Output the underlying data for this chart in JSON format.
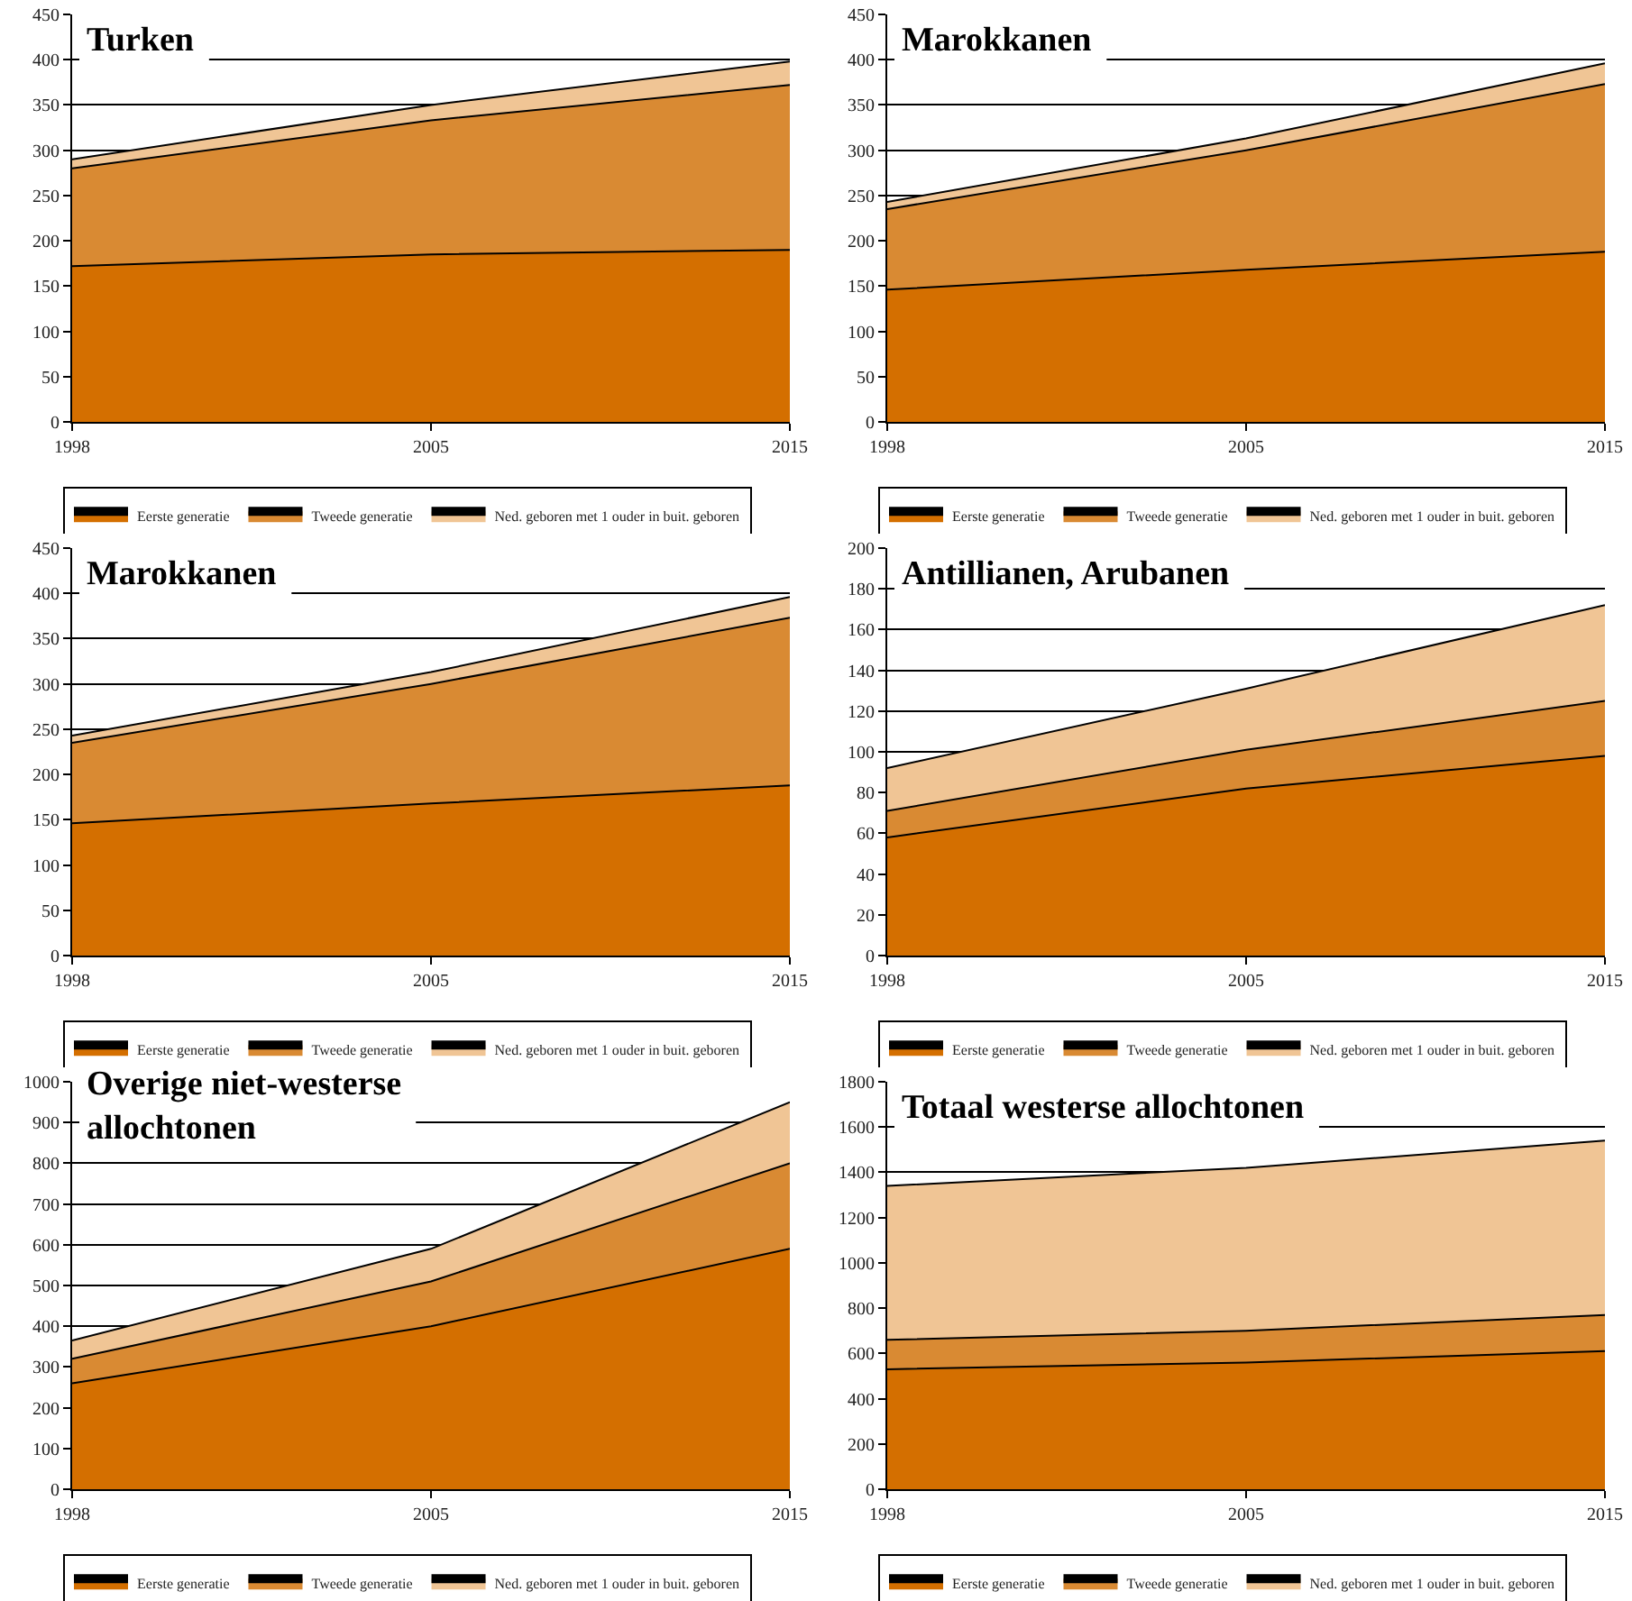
{
  "chart_data": [
    {
      "type": "area",
      "title": "Turken",
      "categories": [
        "1998",
        "2005",
        "2015"
      ],
      "stacked": true,
      "ylim": [
        0,
        450
      ],
      "yticks": [
        0,
        50,
        100,
        150,
        200,
        250,
        300,
        350,
        400,
        450
      ],
      "grid": "y",
      "legend": "bottom",
      "series": [
        {
          "name": "Eerste generatie",
          "color": "#d46f00",
          "values": [
            172,
            185,
            190
          ]
        },
        {
          "name": "Tweede generatie",
          "color": "#d98a33",
          "values": [
            108,
            148,
            182
          ]
        },
        {
          "name": "Ned. geboren met 1 ouder in buit. geboren",
          "color": "#f0c595",
          "values": [
            10,
            17,
            26
          ]
        }
      ]
    },
    {
      "type": "area",
      "title": "Marokkanen",
      "categories": [
        "1998",
        "2005",
        "2015"
      ],
      "stacked": true,
      "ylim": [
        0,
        450
      ],
      "yticks": [
        0,
        50,
        100,
        150,
        200,
        250,
        300,
        350,
        400,
        450
      ],
      "grid": "y",
      "legend": "bottom",
      "series": [
        {
          "name": "Eerste generatie",
          "color": "#d46f00",
          "values": [
            146,
            168,
            188
          ]
        },
        {
          "name": "Tweede generatie",
          "color": "#d98a33",
          "values": [
            89,
            132,
            185
          ]
        },
        {
          "name": "Ned. geboren met 1 ouder in buit. geboren",
          "color": "#f0c595",
          "values": [
            8,
            13,
            23
          ]
        }
      ]
    },
    {
      "type": "area",
      "title": "Marokkanen",
      "categories": [
        "1998",
        "2005",
        "2015"
      ],
      "stacked": true,
      "ylim": [
        0,
        450
      ],
      "yticks": [
        0,
        50,
        100,
        150,
        200,
        250,
        300,
        350,
        400,
        450
      ],
      "grid": "y",
      "legend": "bottom",
      "series": [
        {
          "name": "Eerste generatie",
          "color": "#d46f00",
          "values": [
            146,
            168,
            188
          ]
        },
        {
          "name": "Tweede generatie",
          "color": "#d98a33",
          "values": [
            89,
            132,
            185
          ]
        },
        {
          "name": "Ned. geboren met 1 ouder in buit. geboren",
          "color": "#f0c595",
          "values": [
            8,
            13,
            23
          ]
        }
      ]
    },
    {
      "type": "area",
      "title": "Antillianen, Arubanen",
      "categories": [
        "1998",
        "2005",
        "2015"
      ],
      "stacked": true,
      "ylim": [
        0,
        200
      ],
      "yticks": [
        0,
        20,
        40,
        60,
        80,
        100,
        120,
        140,
        160,
        180,
        200
      ],
      "grid": "y",
      "legend": "bottom",
      "series": [
        {
          "name": "Eerste generatie",
          "color": "#d46f00",
          "values": [
            58,
            82,
            98
          ]
        },
        {
          "name": "Tweede generatie",
          "color": "#d98a33",
          "values": [
            13,
            19,
            27
          ]
        },
        {
          "name": "Ned. geboren met 1 ouder in buit. geboren",
          "color": "#f0c595",
          "values": [
            21,
            30,
            47
          ]
        }
      ]
    },
    {
      "type": "area",
      "title": "Overige niet-westerse allochtonen",
      "categories": [
        "1998",
        "2005",
        "2015"
      ],
      "stacked": true,
      "ylim": [
        0,
        1000
      ],
      "yticks": [
        0,
        100,
        200,
        300,
        400,
        500,
        600,
        700,
        800,
        900,
        1000
      ],
      "grid": "y",
      "legend": "bottom",
      "series": [
        {
          "name": "Eerste generatie",
          "color": "#d46f00",
          "values": [
            260,
            400,
            590
          ]
        },
        {
          "name": "Tweede generatie",
          "color": "#d98a33",
          "values": [
            60,
            110,
            210
          ]
        },
        {
          "name": "Ned. geboren met 1 ouder in buit. geboren",
          "color": "#f0c595",
          "values": [
            45,
            80,
            150
          ]
        }
      ]
    },
    {
      "type": "area",
      "title": "Totaal westerse allochtonen",
      "categories": [
        "1998",
        "2005",
        "2015"
      ],
      "stacked": true,
      "ylim": [
        0,
        1800
      ],
      "yticks": [
        0,
        200,
        400,
        600,
        800,
        1000,
        1200,
        1400,
        1600,
        1800
      ],
      "grid": "y",
      "legend": "bottom",
      "series": [
        {
          "name": "Eerste generatie",
          "color": "#d46f00",
          "values": [
            530,
            560,
            610
          ]
        },
        {
          "name": "Tweede generatie",
          "color": "#d98a33",
          "values": [
            130,
            140,
            160
          ]
        },
        {
          "name": "Ned. geboren met 1 ouder in buit. geboren",
          "color": "#f0c595",
          "values": [
            680,
            720,
            770
          ]
        }
      ]
    }
  ]
}
